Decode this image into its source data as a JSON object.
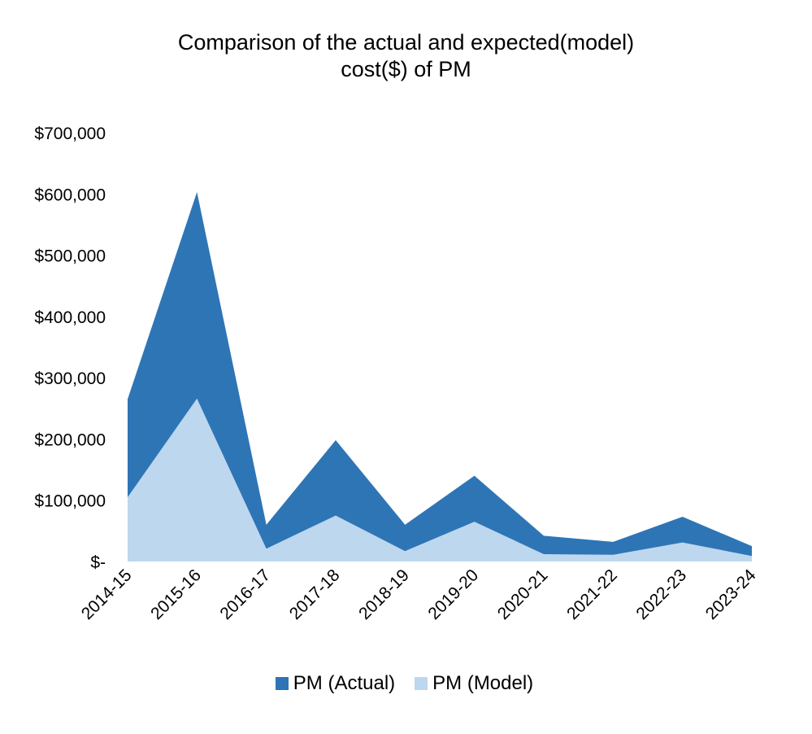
{
  "title": {
    "line1": "Comparison of the actual and expected(model)",
    "line2": "cost($) of PM"
  },
  "colors": {
    "actual": "#2e75b6",
    "model": "#bdd7ee"
  },
  "chart_data": {
    "type": "area",
    "title": "Comparison of the actual and expected(model) cost($) of PM",
    "xlabel": "",
    "ylabel": "",
    "categories": [
      "2014-15",
      "2015-16",
      "2016-17",
      "2017-18",
      "2018-19",
      "2019-20",
      "2020-21",
      "2021-22",
      "2022-23",
      "2023-24"
    ],
    "series": [
      {
        "name": "PM (Actual)",
        "values": [
          265000,
          603000,
          60000,
          198000,
          60000,
          140000,
          42000,
          32000,
          73000,
          25000
        ]
      },
      {
        "name": "PM (Model)",
        "values": [
          105000,
          266000,
          21000,
          75000,
          17000,
          65000,
          12000,
          11000,
          31000,
          9000
        ]
      }
    ],
    "ylim": [
      0,
      700000
    ],
    "yticks": [
      {
        "value": 0,
        "label": "$-"
      },
      {
        "value": 100000,
        "label": "$100,000"
      },
      {
        "value": 200000,
        "label": "$200,000"
      },
      {
        "value": 300000,
        "label": "$300,000"
      },
      {
        "value": 400000,
        "label": "$400,000"
      },
      {
        "value": 500000,
        "label": "$500,000"
      },
      {
        "value": 600000,
        "label": "$600,000"
      },
      {
        "value": 700000,
        "label": "$700,000"
      }
    ],
    "grid": false,
    "legend": "bottom"
  },
  "legend": {
    "actual_label": "PM (Actual)",
    "model_label": "PM (Model)"
  }
}
